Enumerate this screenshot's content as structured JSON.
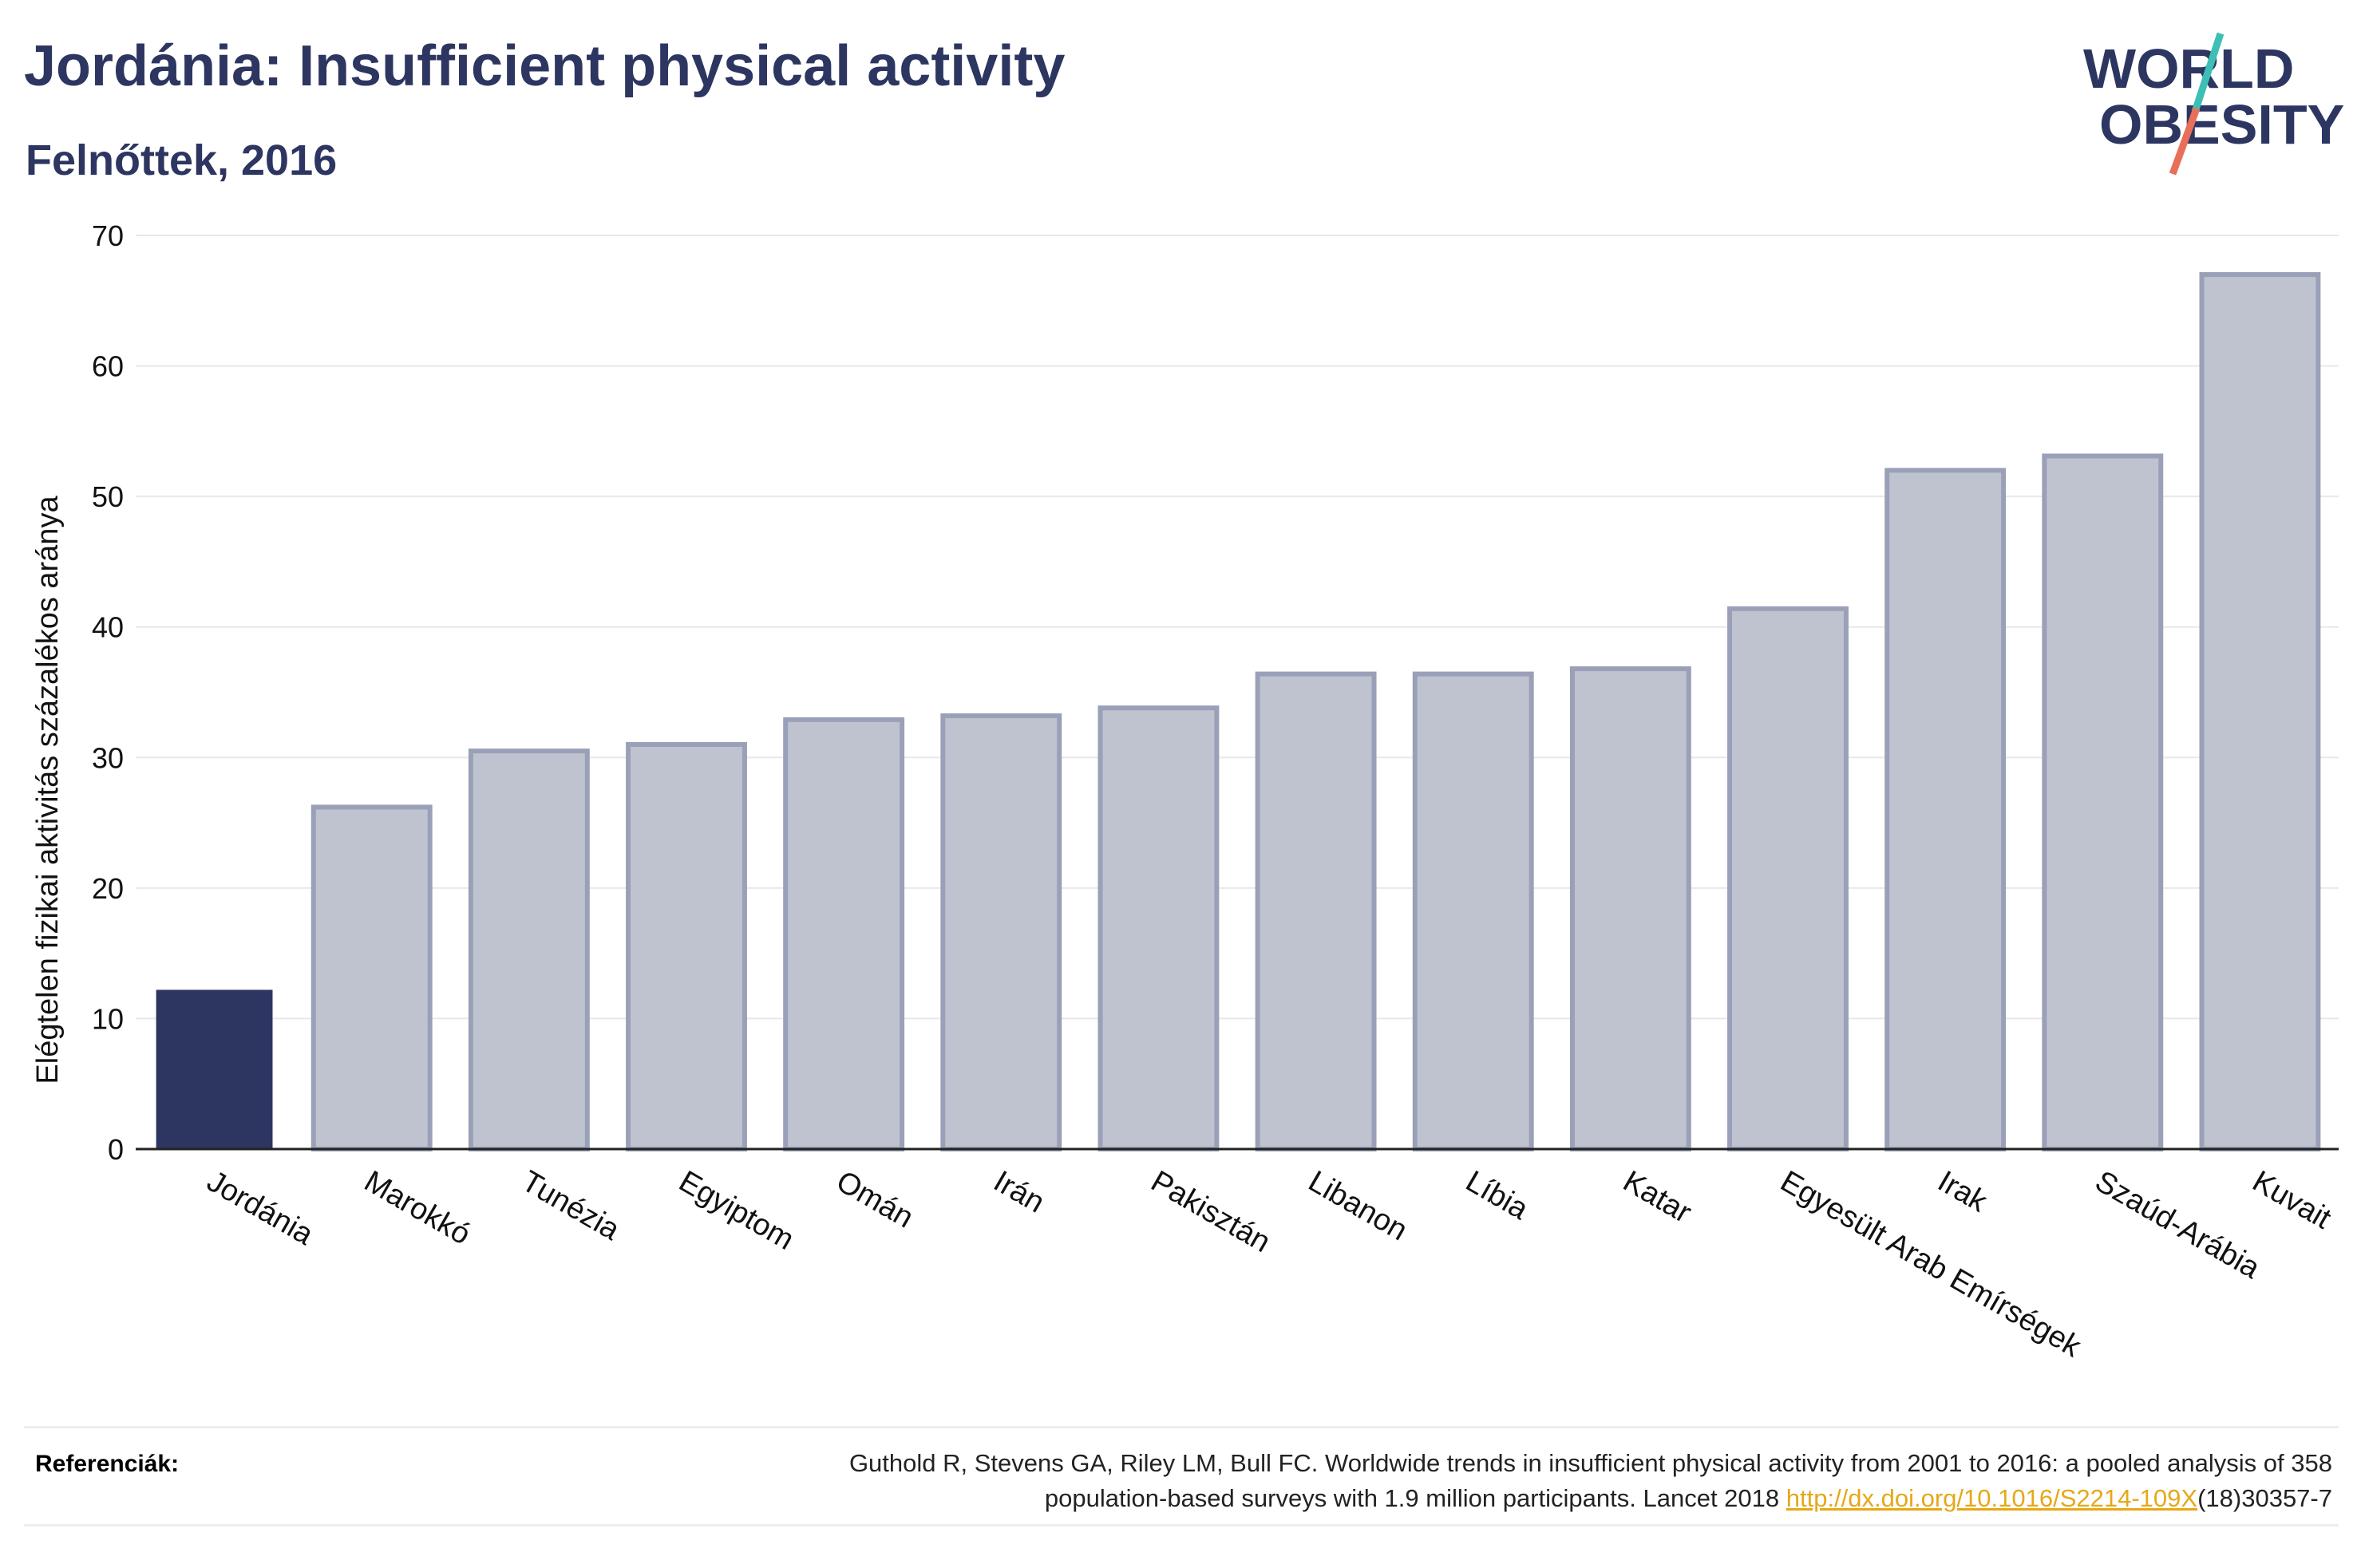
{
  "header": {
    "title": "Jordánia: Insufficient physical activity",
    "subtitle": "Felnőttek, 2016"
  },
  "logo": {
    "line1": "WORLD",
    "line2": "OBESITY",
    "slash_colors": [
      "#3cbfb4",
      "#e8705a"
    ]
  },
  "colors": {
    "highlight_bar": "#2d3561",
    "other_bar_fill": "#bfc3d0",
    "other_bar_stroke": "#9aa0b8",
    "text_dark": "#2d3561",
    "link": "#e6a817"
  },
  "chart_data": {
    "type": "bar",
    "title": "Jordánia: Insufficient physical activity",
    "subtitle": "Felnőttek, 2016",
    "xlabel": "",
    "ylabel": "Elégtelen fizikai aktivitás százalékos aránya",
    "ylim": [
      0,
      70
    ],
    "yticks": [
      0,
      10,
      20,
      30,
      40,
      50,
      60,
      70
    ],
    "grid": true,
    "highlight": "Jordánia",
    "categories": [
      "Jordánia",
      "Marokkó",
      "Tunézia",
      "Egyiptom",
      "Omán",
      "Irán",
      "Pakisztán",
      "Libanon",
      "Líbia",
      "Katar",
      "Egyesült Arab Emírségek",
      "Irak",
      "Szaúd-Arábia",
      "Kuvait"
    ],
    "values": [
      12.2,
      26.2,
      30.5,
      31,
      32.9,
      33.2,
      33.8,
      36.4,
      36.4,
      36.8,
      41.4,
      52,
      53.1,
      67
    ]
  },
  "references": {
    "label": "Referenciák:",
    "line1": "Guthold R, Stevens GA, Riley LM, Bull FC. Worldwide trends in insufficient physical activity from 2001 to 2016: a pooled analysis of 358",
    "line2_prefix": "population-based surveys with 1.9 million participants. Lancet 2018 ",
    "link": "http://dx.doi.org/10.1016/S2214-109X",
    "line2_suffix": "(18)30357-7"
  }
}
